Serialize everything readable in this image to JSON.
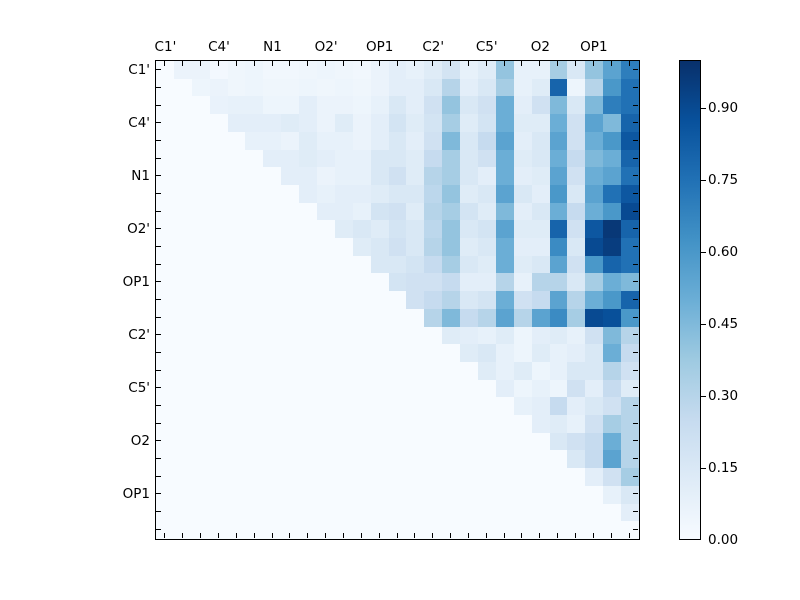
{
  "figure": {
    "background": "#ffffff"
  },
  "chart_data": {
    "type": "heatmap",
    "title": "",
    "xlabel": "",
    "ylabel": "",
    "colormap": "Blues",
    "colormap_stops": [
      "#f7fbff",
      "#deebf7",
      "#c6dbef",
      "#9ecae1",
      "#6baed6",
      "#4292c6",
      "#2171b5",
      "#08519c",
      "#08306b"
    ],
    "vmin": 0.0,
    "vmax": 1.0,
    "n_rows": 27,
    "n_cols": 27,
    "tick_label_interval": 3,
    "x_tick_labels": [
      "C1'",
      "C4'",
      "N1",
      "O2'",
      "OP1",
      "C2'",
      "C5'",
      "O2",
      "OP1"
    ],
    "y_tick_labels": [
      "C1'",
      "C4'",
      "N1",
      "O2'",
      "OP1",
      "C2'",
      "C5'",
      "O2",
      "OP1"
    ],
    "colorbar": {
      "ticks": [
        0.0,
        0.15,
        0.3,
        0.45,
        0.6,
        0.75,
        0.9
      ],
      "tick_labels": [
        "0.00",
        "0.15",
        "0.30",
        "0.45",
        "0.60",
        "0.75",
        "0.90"
      ]
    },
    "matrix": [
      [
        0,
        0.06,
        0.06,
        0.02,
        0.04,
        0.05,
        0.03,
        0.03,
        0.04,
        0.05,
        0.04,
        0.03,
        0.06,
        0.1,
        0.08,
        0.12,
        0.18,
        0.08,
        0.12,
        0.4,
        0.08,
        0.08,
        0.35,
        0.15,
        0.4,
        0.55,
        0.7
      ],
      [
        0,
        0,
        0.05,
        0.06,
        0.04,
        0.05,
        0.04,
        0.04,
        0.05,
        0.04,
        0.05,
        0.04,
        0.06,
        0.1,
        0.1,
        0.15,
        0.3,
        0.1,
        0.15,
        0.35,
        0.08,
        0.12,
        0.8,
        0.05,
        0.3,
        0.6,
        0.75
      ],
      [
        0,
        0,
        0,
        0.07,
        0.08,
        0.08,
        0.05,
        0.05,
        0.1,
        0.06,
        0.06,
        0.05,
        0.08,
        0.15,
        0.1,
        0.2,
        0.4,
        0.15,
        0.2,
        0.5,
        0.1,
        0.2,
        0.45,
        0.15,
        0.45,
        0.7,
        0.75
      ],
      [
        0,
        0,
        0,
        0,
        0.1,
        0.1,
        0.1,
        0.12,
        0.1,
        0.06,
        0.12,
        0.06,
        0.1,
        0.18,
        0.12,
        0.18,
        0.35,
        0.12,
        0.18,
        0.5,
        0.12,
        0.12,
        0.5,
        0.2,
        0.55,
        0.45,
        0.8
      ],
      [
        0,
        0,
        0,
        0,
        0,
        0.08,
        0.08,
        0.06,
        0.12,
        0.08,
        0.08,
        0.06,
        0.1,
        0.15,
        0.1,
        0.2,
        0.45,
        0.15,
        0.25,
        0.55,
        0.1,
        0.15,
        0.55,
        0.2,
        0.5,
        0.6,
        0.85
      ],
      [
        0,
        0,
        0,
        0,
        0,
        0,
        0.1,
        0.1,
        0.12,
        0.1,
        0.08,
        0.08,
        0.15,
        0.15,
        0.12,
        0.25,
        0.35,
        0.15,
        0.2,
        0.5,
        0.12,
        0.15,
        0.5,
        0.25,
        0.45,
        0.5,
        0.8
      ],
      [
        0,
        0,
        0,
        0,
        0,
        0,
        0,
        0.1,
        0.1,
        0.06,
        0.08,
        0.08,
        0.15,
        0.2,
        0.12,
        0.3,
        0.35,
        0.15,
        0.1,
        0.5,
        0.1,
        0.12,
        0.55,
        0.2,
        0.5,
        0.55,
        0.75
      ],
      [
        0,
        0,
        0,
        0,
        0,
        0,
        0,
        0,
        0.1,
        0.08,
        0.1,
        0.1,
        0.12,
        0.15,
        0.15,
        0.28,
        0.4,
        0.12,
        0.15,
        0.55,
        0.15,
        0.1,
        0.6,
        0.15,
        0.55,
        0.75,
        0.85
      ],
      [
        0,
        0,
        0,
        0,
        0,
        0,
        0,
        0,
        0,
        0.1,
        0.1,
        0.08,
        0.18,
        0.2,
        0.12,
        0.3,
        0.35,
        0.18,
        0.12,
        0.45,
        0.1,
        0.15,
        0.5,
        0.25,
        0.5,
        0.6,
        0.9
      ],
      [
        0,
        0,
        0,
        0,
        0,
        0,
        0,
        0,
        0,
        0,
        0.12,
        0.15,
        0.12,
        0.18,
        0.15,
        0.28,
        0.4,
        0.15,
        0.18,
        0.55,
        0.12,
        0.12,
        0.8,
        0.2,
        0.85,
        0.97,
        0.8
      ],
      [
        0,
        0,
        0,
        0,
        0,
        0,
        0,
        0,
        0,
        0,
        0,
        0.12,
        0.15,
        0.2,
        0.15,
        0.3,
        0.4,
        0.12,
        0.15,
        0.5,
        0.1,
        0.1,
        0.65,
        0.15,
        0.9,
        0.95,
        0.75
      ],
      [
        0,
        0,
        0,
        0,
        0,
        0,
        0,
        0,
        0,
        0,
        0,
        0,
        0.15,
        0.15,
        0.18,
        0.25,
        0.35,
        0.15,
        0.12,
        0.5,
        0.12,
        0.15,
        0.55,
        0.2,
        0.6,
        0.8,
        0.75
      ],
      [
        0,
        0,
        0,
        0,
        0,
        0,
        0,
        0,
        0,
        0,
        0,
        0,
        0,
        0.18,
        0.2,
        0.2,
        0.25,
        0.1,
        0.1,
        0.3,
        0.08,
        0.3,
        0.3,
        0.15,
        0.35,
        0.5,
        0.45
      ],
      [
        0,
        0,
        0,
        0,
        0,
        0,
        0,
        0,
        0,
        0,
        0,
        0,
        0,
        0,
        0.2,
        0.25,
        0.3,
        0.15,
        0.18,
        0.5,
        0.2,
        0.25,
        0.55,
        0.3,
        0.5,
        0.6,
        0.8
      ],
      [
        0,
        0,
        0,
        0,
        0,
        0,
        0,
        0,
        0,
        0,
        0,
        0,
        0,
        0,
        0,
        0.3,
        0.45,
        0.25,
        0.3,
        0.55,
        0.3,
        0.55,
        0.65,
        0.35,
        0.9,
        0.88,
        0.6
      ],
      [
        0,
        0,
        0,
        0,
        0,
        0,
        0,
        0,
        0,
        0,
        0,
        0,
        0,
        0,
        0,
        0,
        0.12,
        0.1,
        0.08,
        0.12,
        0.05,
        0.1,
        0.12,
        0.08,
        0.2,
        0.45,
        0.3
      ],
      [
        0,
        0,
        0,
        0,
        0,
        0,
        0,
        0,
        0,
        0,
        0,
        0,
        0,
        0,
        0,
        0,
        0,
        0.12,
        0.15,
        0.08,
        0.05,
        0.12,
        0.08,
        0.1,
        0.15,
        0.5,
        0.25
      ],
      [
        0,
        0,
        0,
        0,
        0,
        0,
        0,
        0,
        0,
        0,
        0,
        0,
        0,
        0,
        0,
        0,
        0,
        0,
        0.12,
        0.08,
        0.12,
        0.05,
        0.08,
        0.15,
        0.15,
        0.3,
        0.2
      ],
      [
        0,
        0,
        0,
        0,
        0,
        0,
        0,
        0,
        0,
        0,
        0,
        0,
        0,
        0,
        0,
        0,
        0,
        0,
        0,
        0.1,
        0.05,
        0.08,
        0.05,
        0.2,
        0.1,
        0.25,
        0.12
      ],
      [
        0,
        0,
        0,
        0,
        0,
        0,
        0,
        0,
        0,
        0,
        0,
        0,
        0,
        0,
        0,
        0,
        0,
        0,
        0,
        0,
        0.08,
        0.1,
        0.25,
        0.1,
        0.15,
        0.2,
        0.3
      ],
      [
        0,
        0,
        0,
        0,
        0,
        0,
        0,
        0,
        0,
        0,
        0,
        0,
        0,
        0,
        0,
        0,
        0,
        0,
        0,
        0,
        0,
        0.1,
        0.12,
        0.08,
        0.2,
        0.35,
        0.3
      ],
      [
        0,
        0,
        0,
        0,
        0,
        0,
        0,
        0,
        0,
        0,
        0,
        0,
        0,
        0,
        0,
        0,
        0,
        0,
        0,
        0,
        0,
        0,
        0.15,
        0.2,
        0.25,
        0.5,
        0.3
      ],
      [
        0,
        0,
        0,
        0,
        0,
        0,
        0,
        0,
        0,
        0,
        0,
        0,
        0,
        0,
        0,
        0,
        0,
        0,
        0,
        0,
        0,
        0,
        0,
        0.15,
        0.25,
        0.55,
        0.3
      ],
      [
        0,
        0,
        0,
        0,
        0,
        0,
        0,
        0,
        0,
        0,
        0,
        0,
        0,
        0,
        0,
        0,
        0,
        0,
        0,
        0,
        0,
        0,
        0,
        0,
        0.1,
        0.2,
        0.35
      ],
      [
        0,
        0,
        0,
        0,
        0,
        0,
        0,
        0,
        0,
        0,
        0,
        0,
        0,
        0,
        0,
        0,
        0,
        0,
        0,
        0,
        0,
        0,
        0,
        0,
        0,
        0.08,
        0.15
      ],
      [
        0,
        0,
        0,
        0,
        0,
        0,
        0,
        0,
        0,
        0,
        0,
        0,
        0,
        0,
        0,
        0,
        0,
        0,
        0,
        0,
        0,
        0,
        0,
        0,
        0,
        0,
        0.1
      ],
      [
        0,
        0,
        0,
        0,
        0,
        0,
        0,
        0,
        0,
        0,
        0,
        0,
        0,
        0,
        0,
        0,
        0,
        0,
        0,
        0,
        0,
        0,
        0,
        0,
        0,
        0,
        0
      ]
    ]
  }
}
